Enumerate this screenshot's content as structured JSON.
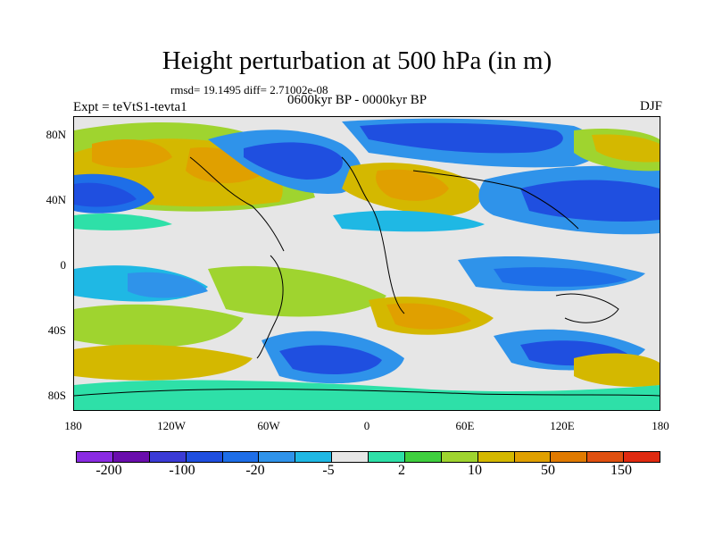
{
  "title": "Height perturbation at 500 hPa (in m)",
  "stats": "rmsd= 19.1495 diff= 2.71002e-08",
  "left_label": "Expt = teVtS1-tevta1",
  "center_label": "0600kyr BP - 0000kyr BP",
  "right_label": "DJF",
  "y_ticks": [
    "80N",
    "40N",
    "0",
    "40S",
    "80S"
  ],
  "x_ticks": [
    "180",
    "120W",
    "60W",
    "0",
    "60E",
    "120E",
    "180"
  ],
  "colorbar": {
    "colors": [
      "#8a2be2",
      "#6a0dad",
      "#3b3bd6",
      "#1f4fe0",
      "#1e6ee8",
      "#2f93ea",
      "#1fb8e4",
      "#e6e6e6",
      "#2ee0a8",
      "#3fcf3f",
      "#9fd42f",
      "#d4b800",
      "#e0a000",
      "#e07a00",
      "#e05010",
      "#e02a10"
    ],
    "labels": [
      "-200",
      "-100",
      "-20",
      "-5",
      "2",
      "10",
      "50",
      "150"
    ]
  },
  "colors": {
    "neg_strong": "#1f4fe0",
    "neg_mid": "#2f93ea",
    "neg_weak": "#1fb8e4",
    "neutral": "#e6e6e6",
    "pos_weak": "#2ee0a8",
    "pos_mid": "#9fd42f",
    "pos_strong": "#d4b800",
    "pos_peak": "#e0a000"
  }
}
